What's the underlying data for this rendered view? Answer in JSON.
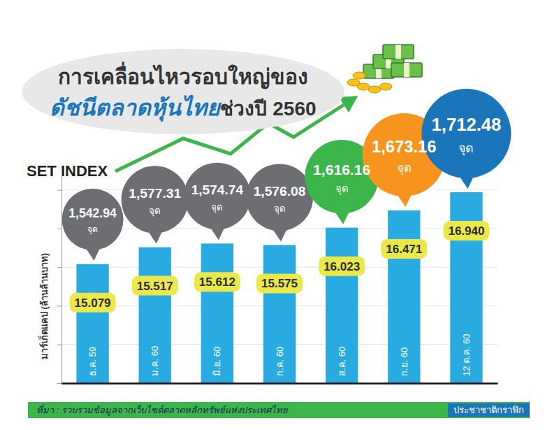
{
  "chart_data": {
    "type": "bar",
    "title": "การเคลื่อนไหวรอบใหญ่ของ",
    "subtitle_highlight": "ดัชนีตลาดหุ้นไทย",
    "subtitle": "ช่วงปี 2560",
    "index_label": "SET INDEX",
    "y_label": "มาร์เก็ตแคป (ล้านล้านบาท)",
    "categories": [
      "ธ.ค. 59",
      "ม.ค. 60",
      "มิ.ย. 60",
      "ก.ค. 60",
      "ส.ค. 60",
      "ก.ย. 60",
      "12 ต.ค. 60"
    ],
    "values": [
      15.079,
      15.517,
      15.612,
      15.575,
      16.023,
      16.471,
      16.94
    ],
    "value_labels": [
      "15.079",
      "15.517",
      "15.612",
      "15.575",
      "16.023",
      "16.471",
      "16.940"
    ],
    "color": "#29abe2",
    "index_values": [
      1542.94,
      1577.31,
      1574.74,
      1576.08,
      1616.16,
      1673.16,
      1712.48
    ],
    "index_value_labels": [
      "1,542.94",
      "1,577.31",
      "1,574.74",
      "1,576.08",
      "1,616.16",
      "1,673.16",
      "1,712.48"
    ],
    "index_unit": "จุด",
    "index_colors": [
      "#6d6e71",
      "#6d6e71",
      "#6d6e71",
      "#6d6e71",
      "#3cb54a",
      "#f7941d",
      "#1b75bb"
    ],
    "ylim": [
      12,
      17.5
    ],
    "yticks": [
      12,
      13,
      14,
      15,
      16,
      17
    ],
    "grid": true,
    "tick_labels": false,
    "data_labels": true,
    "source": "ที่มา : รวบรวมข้อมูลจากเว็บไซต์ตลาดหลักทรัพย์แห่งประเทศไทย",
    "credit": "ประชาชาติกราฟิก"
  }
}
